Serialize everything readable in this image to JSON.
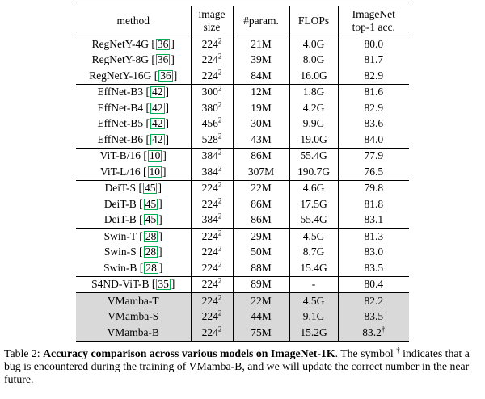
{
  "colors": {
    "cite_green": "#00b050",
    "shade_gray": "#d9d9d9"
  },
  "header": {
    "method": "method",
    "image_size_line1": "image",
    "image_size_line2": "size",
    "params": "#param.",
    "flops": "FLOPs",
    "acc_line1": "ImageNet",
    "acc_line2": "top-1 acc."
  },
  "groups": [
    {
      "shaded": false,
      "rows": [
        {
          "method": "RegNetY-4G",
          "cite": "36",
          "size": "224",
          "size_sup": "2",
          "params": "21M",
          "flops": "4.0G",
          "acc": "80.0",
          "acc_sup": ""
        },
        {
          "method": "RegNetY-8G",
          "cite": "36",
          "size": "224",
          "size_sup": "2",
          "params": "39M",
          "flops": "8.0G",
          "acc": "81.7",
          "acc_sup": ""
        },
        {
          "method": "RegNetY-16G",
          "cite": "36",
          "size": "224",
          "size_sup": "2",
          "params": "84M",
          "flops": "16.0G",
          "acc": "82.9",
          "acc_sup": ""
        }
      ]
    },
    {
      "shaded": false,
      "rows": [
        {
          "method": "EffNet-B3",
          "cite": "42",
          "size": "300",
          "size_sup": "2",
          "params": "12M",
          "flops": "1.8G",
          "acc": "81.6",
          "acc_sup": ""
        },
        {
          "method": "EffNet-B4",
          "cite": "42",
          "size": "380",
          "size_sup": "2",
          "params": "19M",
          "flops": "4.2G",
          "acc": "82.9",
          "acc_sup": ""
        },
        {
          "method": "EffNet-B5",
          "cite": "42",
          "size": "456",
          "size_sup": "2",
          "params": "30M",
          "flops": "9.9G",
          "acc": "83.6",
          "acc_sup": ""
        },
        {
          "method": "EffNet-B6",
          "cite": "42",
          "size": "528",
          "size_sup": "2",
          "params": "43M",
          "flops": "19.0G",
          "acc": "84.0",
          "acc_sup": ""
        }
      ]
    },
    {
      "shaded": false,
      "rows": [
        {
          "method": "ViT-B/16",
          "cite": "10",
          "size": "384",
          "size_sup": "2",
          "params": "86M",
          "flops": "55.4G",
          "acc": "77.9",
          "acc_sup": ""
        },
        {
          "method": "ViT-L/16",
          "cite": "10",
          "size": "384",
          "size_sup": "2",
          "params": "307M",
          "flops": "190.7G",
          "acc": "76.5",
          "acc_sup": ""
        }
      ]
    },
    {
      "shaded": false,
      "rows": [
        {
          "method": "DeiT-S",
          "cite": "45",
          "size": "224",
          "size_sup": "2",
          "params": "22M",
          "flops": "4.6G",
          "acc": "79.8",
          "acc_sup": ""
        },
        {
          "method": "DeiT-B",
          "cite": "45",
          "size": "224",
          "size_sup": "2",
          "params": "86M",
          "flops": "17.5G",
          "acc": "81.8",
          "acc_sup": ""
        },
        {
          "method": "DeiT-B",
          "cite": "45",
          "size": "384",
          "size_sup": "2",
          "params": "86M",
          "flops": "55.4G",
          "acc": "83.1",
          "acc_sup": ""
        }
      ]
    },
    {
      "shaded": false,
      "rows": [
        {
          "method": "Swin-T",
          "cite": "28",
          "size": "224",
          "size_sup": "2",
          "params": "29M",
          "flops": "4.5G",
          "acc": "81.3",
          "acc_sup": ""
        },
        {
          "method": "Swin-S",
          "cite": "28",
          "size": "224",
          "size_sup": "2",
          "params": "50M",
          "flops": "8.7G",
          "acc": "83.0",
          "acc_sup": ""
        },
        {
          "method": "Swin-B",
          "cite": "28",
          "size": "224",
          "size_sup": "2",
          "params": "88M",
          "flops": "15.4G",
          "acc": "83.5",
          "acc_sup": ""
        }
      ]
    },
    {
      "shaded": false,
      "rows": [
        {
          "method": "S4ND-ViT-B",
          "cite": "35",
          "size": "224",
          "size_sup": "2",
          "params": "89M",
          "flops": "-",
          "acc": "80.4",
          "acc_sup": ""
        }
      ]
    },
    {
      "shaded": true,
      "rows": [
        {
          "method": "VMamba-T",
          "cite": "",
          "size": "224",
          "size_sup": "2",
          "params": "22M",
          "flops": "4.5G",
          "acc": "82.2",
          "acc_sup": ""
        },
        {
          "method": "VMamba-S",
          "cite": "",
          "size": "224",
          "size_sup": "2",
          "params": "44M",
          "flops": "9.1G",
          "acc": "83.5",
          "acc_sup": ""
        },
        {
          "method": "VMamba-B",
          "cite": "",
          "size": "224",
          "size_sup": "2",
          "params": "75M",
          "flops": "15.2G",
          "acc": "83.2",
          "acc_sup": "†"
        }
      ]
    }
  ],
  "caption": {
    "label": "Table 2: ",
    "bold": "Accuracy comparison across various models on ImageNet-1K",
    "mid": ". The symbol ",
    "symbol": "†",
    "rest": " indicates that a bug is encountered during the training of VMamba-B, and we will update the correct number in the near future."
  }
}
